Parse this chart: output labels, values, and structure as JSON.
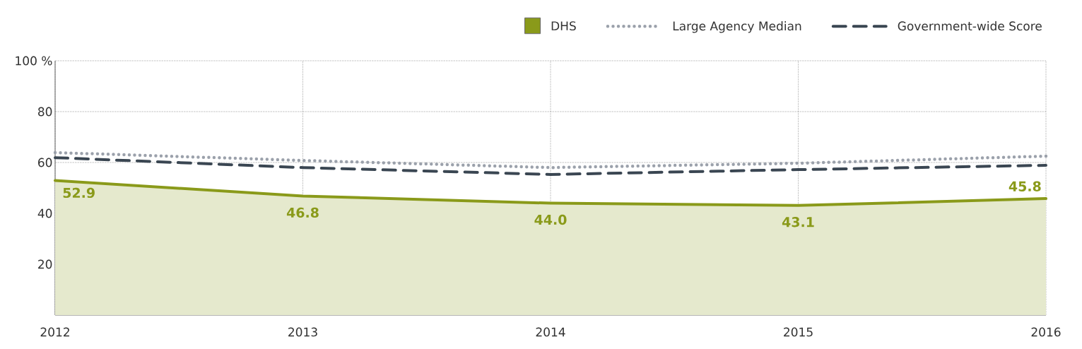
{
  "chart_data": {
    "type": "line",
    "x": [
      2012,
      2013,
      2014,
      2015,
      2016
    ],
    "series": [
      {
        "name": "DHS",
        "type": "area",
        "color": "#8a9a1a",
        "values": [
          52.9,
          46.8,
          44.0,
          43.1,
          45.8
        ],
        "value_labels": [
          "52.9",
          "46.8",
          "44.0",
          "43.1",
          "45.8"
        ]
      },
      {
        "name": "Large Agency Median",
        "line_style": "dotted",
        "color": "#9ba1ab",
        "values": [
          63.9,
          60.8,
          58.0,
          59.7,
          62.5
        ]
      },
      {
        "name": "Government-wide Score",
        "line_style": "dashed",
        "color": "#3a4652",
        "values": [
          61.9,
          58.0,
          55.3,
          57.2,
          58.9
        ]
      }
    ],
    "xlim": [
      2012,
      2016
    ],
    "xticks": [
      2012,
      2013,
      2014,
      2015,
      2016
    ],
    "ylim": [
      0,
      100
    ],
    "yticks": [
      20,
      40,
      60,
      80,
      {
        "value": 100,
        "label": "100 %"
      }
    ],
    "grid": true,
    "legend": "top right"
  }
}
